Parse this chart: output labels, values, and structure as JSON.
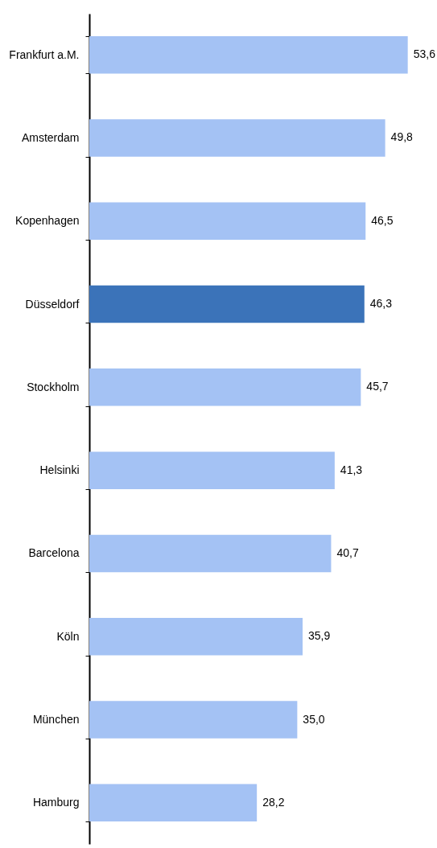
{
  "chart_data": {
    "type": "bar",
    "orientation": "horizontal",
    "categories": [
      "Frankfurt a.M.",
      "Amsterdam",
      "Kopenhagen",
      "Düsseldorf",
      "Stockholm",
      "Helsinki",
      "Barcelona",
      "Köln",
      "München",
      "Hamburg"
    ],
    "values": [
      53.6,
      49.8,
      46.5,
      46.3,
      45.7,
      41.3,
      40.7,
      35.9,
      35.0,
      28.2
    ],
    "colors": [
      "#a4c2f4",
      "#a4c2f4",
      "#a4c2f4",
      "#3b73b9",
      "#a4c2f4",
      "#a4c2f4",
      "#a4c2f4",
      "#a4c2f4",
      "#a4c2f4",
      "#a4c2f4"
    ],
    "value_labels": [
      "53,6",
      "49,8",
      "46,5",
      "46,3",
      "45,7",
      "41,3",
      "40,7",
      "35,9",
      "35,0",
      "28,2"
    ],
    "grid": false,
    "tick_labels": "y"
  }
}
